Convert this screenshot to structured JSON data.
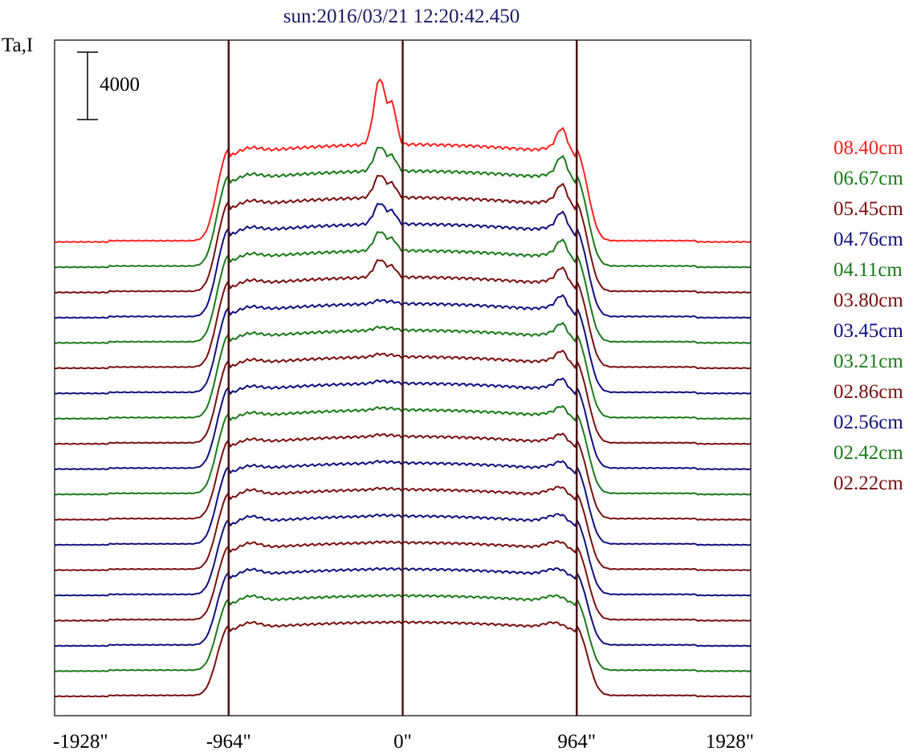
{
  "chart_data": {
    "type": "line",
    "title": "sun:2016/03/21 12:20:42.450",
    "ylabel": "Ta,I",
    "xlabel": "",
    "xlim": [
      -1928,
      1928
    ],
    "x_ticks": [
      {
        "value": -1928,
        "label": "-1928\""
      },
      {
        "value": -964,
        "label": "-964\""
      },
      {
        "value": 0,
        "label": "0\""
      },
      {
        "value": 964,
        "label": "964\""
      },
      {
        "value": 1928,
        "label": "1928\""
      }
    ],
    "vertical_markers": [
      -964,
      0,
      964
    ],
    "scale_bar": {
      "value": 4000,
      "label": "4000"
    },
    "legend_position": "right",
    "series": [
      {
        "name": "08.40cm",
        "color": "#ff2020",
        "index": 0
      },
      {
        "name": "06.67cm",
        "color": "#1a7a1a",
        "index": 1
      },
      {
        "name": "05.45cm",
        "color": "#7a0f0f",
        "index": 2
      },
      {
        "name": "04.76cm",
        "color": "#101080",
        "index": 3
      },
      {
        "name": "04.11cm",
        "color": "#1a7a1a",
        "index": 4
      },
      {
        "name": "03.80cm",
        "color": "#7a0f0f",
        "index": 5
      },
      {
        "name": "03.45cm",
        "color": "#101080",
        "index": 6
      },
      {
        "name": "03.21cm",
        "color": "#1a7a1a",
        "index": 7
      },
      {
        "name": "02.86cm",
        "color": "#7a0f0f",
        "index": 8
      },
      {
        "name": "02.56cm",
        "color": "#101080",
        "index": 9
      },
      {
        "name": "02.42cm",
        "color": "#1a7a1a",
        "index": 10
      },
      {
        "name": "02.22cm",
        "color": "#7a0f0f",
        "index": 11
      }
    ],
    "lower_profiles": [
      {
        "color": "#101080"
      },
      {
        "color": "#7a0f0f"
      },
      {
        "color": "#101080"
      },
      {
        "color": "#7a0f0f"
      },
      {
        "color": "#101080"
      },
      {
        "color": "#1a7a1a"
      },
      {
        "color": "#7a0f0f"
      }
    ],
    "vline_color": "#4a1515",
    "axis_color": "#000000"
  }
}
